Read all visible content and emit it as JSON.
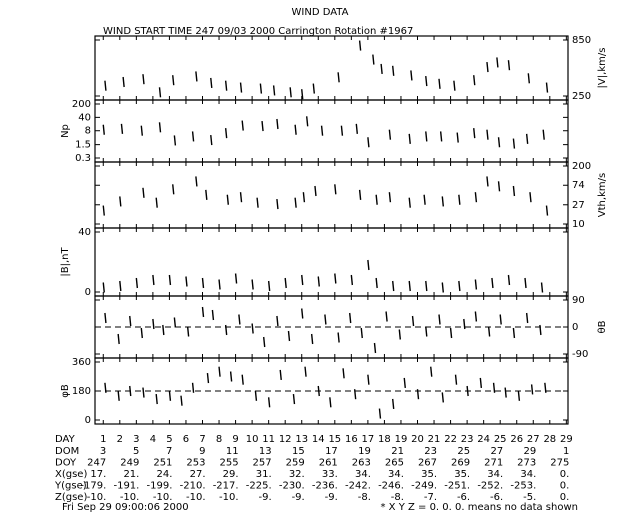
{
  "title": "WIND DATA",
  "subtitle": "WIND START TIME 247 09/03 2000 Carrington Rotation #1967",
  "x_axis": {
    "lim": [
      0.5,
      29.1
    ],
    "ticks": [
      1,
      2,
      3,
      4,
      5,
      6,
      7,
      8,
      9,
      10,
      11,
      12,
      13,
      14,
      15,
      16,
      17,
      18,
      19,
      20,
      21,
      22,
      23,
      24,
      25,
      26,
      27,
      28,
      29
    ],
    "label": "DAY"
  },
  "chart_data": [
    {
      "type": "scatter",
      "ylabel": "|V|,km/s",
      "axis_side": "right",
      "ylim": [
        250,
        850
      ],
      "yticks": [
        250,
        850
      ],
      "x": [
        1.1,
        2.2,
        3.4,
        4.4,
        5.2,
        6.6,
        7.5,
        8.4,
        9.3,
        10.5,
        11.3,
        12.3,
        13,
        13.7,
        15.2,
        16.5,
        17.3,
        17.8,
        18.5,
        19.6,
        20.5,
        21.3,
        22.2,
        23.4,
        24.2,
        24.8,
        25.5,
        26.7,
        27.8
      ],
      "values": [
        360,
        400,
        430,
        290,
        420,
        460,
        390,
        360,
        340,
        330,
        310,
        290,
        270,
        330,
        450,
        790,
        640,
        540,
        520,
        470,
        410,
        380,
        360,
        420,
        560,
        610,
        580,
        440,
        340
      ]
    },
    {
      "type": "scatter",
      "ylabel": "Np",
      "axis_side": "left",
      "log": true,
      "ylim": [
        0.3,
        200
      ],
      "yticks": [
        0.3,
        1.5,
        8,
        40,
        200
      ],
      "x": [
        1,
        2.1,
        3.3,
        4.4,
        5.3,
        6.4,
        7.5,
        8.4,
        9.4,
        10.6,
        11.5,
        12.6,
        13.3,
        14.2,
        15.4,
        16.3,
        17,
        18.3,
        19.5,
        20.5,
        21.4,
        22.4,
        23.4,
        24.2,
        24.9,
        25.8,
        26.6,
        27.6
      ],
      "values": [
        9,
        10,
        8,
        12,
        2.5,
        4,
        2.6,
        6,
        15,
        14,
        18,
        9,
        25,
        8,
        8,
        10,
        2,
        5,
        3,
        4,
        4,
        3.5,
        6,
        5,
        2,
        1.7,
        3,
        5
      ]
    },
    {
      "type": "scatter",
      "ylabel": "Vth,km/s",
      "axis_side": "right",
      "log": true,
      "ylim": [
        10,
        200
      ],
      "yticks": [
        10,
        27,
        74,
        200
      ],
      "x": [
        1,
        2,
        3.4,
        4.2,
        5.2,
        6.6,
        7.2,
        8.5,
        9.3,
        10.3,
        11.5,
        12.6,
        13.1,
        13.8,
        15,
        16.5,
        17.5,
        18.3,
        19.5,
        20.4,
        21.5,
        22.5,
        23.5,
        24.2,
        24.9,
        25.8,
        26.8,
        27.8
      ],
      "values": [
        20,
        32,
        50,
        30,
        60,
        90,
        45,
        35,
        40,
        30,
        28,
        30,
        40,
        55,
        60,
        45,
        35,
        40,
        30,
        35,
        32,
        35,
        40,
        90,
        70,
        55,
        40,
        20
      ]
    },
    {
      "type": "scatter",
      "ylabel": "|B|,nT",
      "axis_side": "left",
      "ylim": [
        0,
        40
      ],
      "yticks": [
        0,
        40
      ],
      "x": [
        1,
        2,
        3,
        4,
        5,
        6,
        7,
        8,
        9,
        10,
        11,
        12,
        13,
        14,
        15,
        16,
        17,
        17.5,
        18.5,
        19.5,
        20.5,
        21.5,
        22.5,
        23.5,
        24.5,
        25.5,
        26.5,
        27.5
      ],
      "values": [
        3,
        4,
        6,
        8,
        8,
        7,
        6,
        5,
        9,
        5,
        4,
        6,
        8,
        7,
        9,
        8,
        18,
        6,
        4,
        4,
        4,
        3,
        4,
        5,
        6,
        8,
        6,
        3
      ]
    },
    {
      "type": "scatter",
      "ylabel": "θB",
      "axis_side": "right",
      "ylim": [
        -90,
        90
      ],
      "yticks": [
        -90,
        0,
        90
      ],
      "hline": 0,
      "x": [
        1.1,
        1.9,
        2.6,
        3.3,
        4,
        4.6,
        5.3,
        6.1,
        7,
        7.6,
        8.4,
        9.2,
        10,
        10.7,
        11.5,
        12.2,
        13,
        13.6,
        14.4,
        15.2,
        15.9,
        16.6,
        17.4,
        18.1,
        18.9,
        19.7,
        20.5,
        21.3,
        22,
        22.8,
        23.5,
        24.3,
        25,
        25.8,
        26.6,
        27.4
      ],
      "values": [
        30,
        -40,
        20,
        -20,
        10,
        -10,
        15,
        -15,
        50,
        40,
        -10,
        25,
        -5,
        -50,
        20,
        -30,
        45,
        -40,
        25,
        -35,
        30,
        -20,
        -70,
        35,
        -25,
        20,
        -15,
        25,
        -20,
        10,
        35,
        -15,
        25,
        -20,
        30,
        -10
      ]
    },
    {
      "type": "scatter",
      "ylabel": "φB",
      "axis_side": "left",
      "ylim": [
        0,
        360
      ],
      "yticks": [
        0,
        180,
        360
      ],
      "hline": 180,
      "x": [
        1.1,
        1.9,
        2.6,
        3.4,
        4.2,
        5,
        5.7,
        6.4,
        7.3,
        8,
        8.7,
        9.4,
        10.2,
        11,
        11.7,
        12.5,
        13.2,
        14,
        14.7,
        15.5,
        16.2,
        17,
        17.7,
        18.5,
        19.2,
        20,
        20.8,
        21.5,
        22.3,
        23,
        23.8,
        24.6,
        25.3,
        26.1,
        26.9,
        27.7
      ],
      "values": [
        200,
        150,
        180,
        170,
        130,
        150,
        120,
        200,
        260,
        300,
        270,
        250,
        150,
        110,
        280,
        130,
        300,
        180,
        110,
        290,
        160,
        250,
        40,
        100,
        230,
        160,
        300,
        140,
        250,
        180,
        230,
        200,
        170,
        150,
        190,
        200
      ]
    }
  ],
  "table": {
    "rows": [
      {
        "label": "DOM",
        "values": [
          "3",
          "5",
          "7",
          "9",
          "11",
          "13",
          "15",
          "17",
          "19",
          "21",
          "23",
          "25",
          "27",
          "29",
          "1"
        ]
      },
      {
        "label": "DOY",
        "values": [
          "247",
          "249",
          "251",
          "253",
          "255",
          "257",
          "259",
          "261",
          "263",
          "265",
          "267",
          "269",
          "271",
          "273",
          "275"
        ]
      },
      {
        "label": "X(gse)",
        "values": [
          "17.",
          "21.",
          "24.",
          "27.",
          "29.",
          "31.",
          "32.",
          "33.",
          "34.",
          "34.",
          "35.",
          "35.",
          "34.",
          "34.",
          "0."
        ]
      },
      {
        "label": "Y(gse)",
        "values": [
          "-179.",
          "-191.",
          "-199.",
          "-210.",
          "-217.",
          "-225.",
          "-230.",
          "-236.",
          "-242.",
          "-246.",
          "-249.",
          "-251.",
          "-252.",
          "-253.",
          "0."
        ]
      },
      {
        "label": "Z(gse)",
        "values": [
          "-10.",
          "-10.",
          "-10.",
          "-10.",
          "-10.",
          "-9.",
          "-9.",
          "-9.",
          "-8.",
          "-8.",
          "-7.",
          "-6.",
          "-6.",
          "-5.",
          "0."
        ]
      }
    ]
  },
  "footer": {
    "date": "Fri Sep 29 09:00:06 2000",
    "note": "* X Y Z = 0. 0. 0. means no data shown"
  }
}
